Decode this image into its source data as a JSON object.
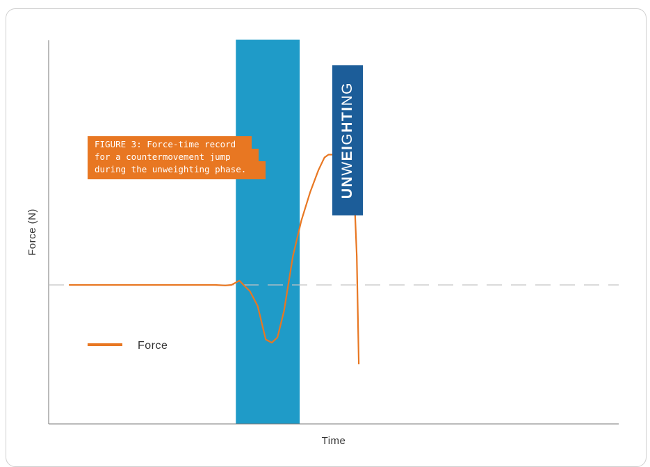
{
  "figure_caption": {
    "line1": "FIGURE 3: Force-time record",
    "line2": "for a countermovement jump",
    "line3": "during the unweighting phase."
  },
  "phase_label": {
    "parts": [
      {
        "text": "UN",
        "bold": true
      },
      {
        "text": "W",
        "bold": false
      },
      {
        "text": "EI",
        "bold": true
      },
      {
        "text": "G",
        "bold": false
      },
      {
        "text": "HTI",
        "bold": true
      },
      {
        "text": "NG",
        "bold": false
      }
    ]
  },
  "colors": {
    "force_line": "#e87722",
    "phase_band": "#1f9bc8",
    "phase_label_bg": "#1c5d99",
    "axis": "#777777",
    "baseline": "#c4c4c4",
    "caption_bg": "#e87722"
  },
  "chart_data": {
    "type": "line",
    "title": "",
    "xlabel": "Time",
    "ylabel": "Force (N)",
    "xlim": [
      0,
      100
    ],
    "ylim": [
      -100,
      100
    ],
    "grid": false,
    "legend": {
      "position": "left",
      "entries": [
        "Force"
      ]
    },
    "series": [
      {
        "name": "Force",
        "x": [
          0,
          4,
          8,
          12,
          16,
          20,
          24,
          28,
          32,
          36,
          38.5,
          40,
          42,
          43,
          44.6,
          46.5,
          48.5,
          50,
          51.4,
          53,
          55.2,
          57.3,
          59.5,
          61.5,
          63,
          64,
          65,
          66,
          67,
          68,
          69,
          70,
          70.5,
          71,
          71.5
        ],
        "y": [
          0,
          0,
          0,
          0,
          0,
          0,
          0,
          0,
          0,
          0,
          -0.5,
          0,
          3,
          0,
          -6,
          -20,
          -52,
          -55,
          -50,
          -25,
          20,
          45,
          65,
          80,
          89,
          91,
          91,
          95,
          96,
          100,
          99,
          80,
          55,
          20,
          -75
        ]
      }
    ],
    "phase_band": {
      "label": "UNWEIGHTING",
      "x_start": 43,
      "x_end": 55
    },
    "reference_line": {
      "y": 0,
      "style": "dashed"
    }
  }
}
